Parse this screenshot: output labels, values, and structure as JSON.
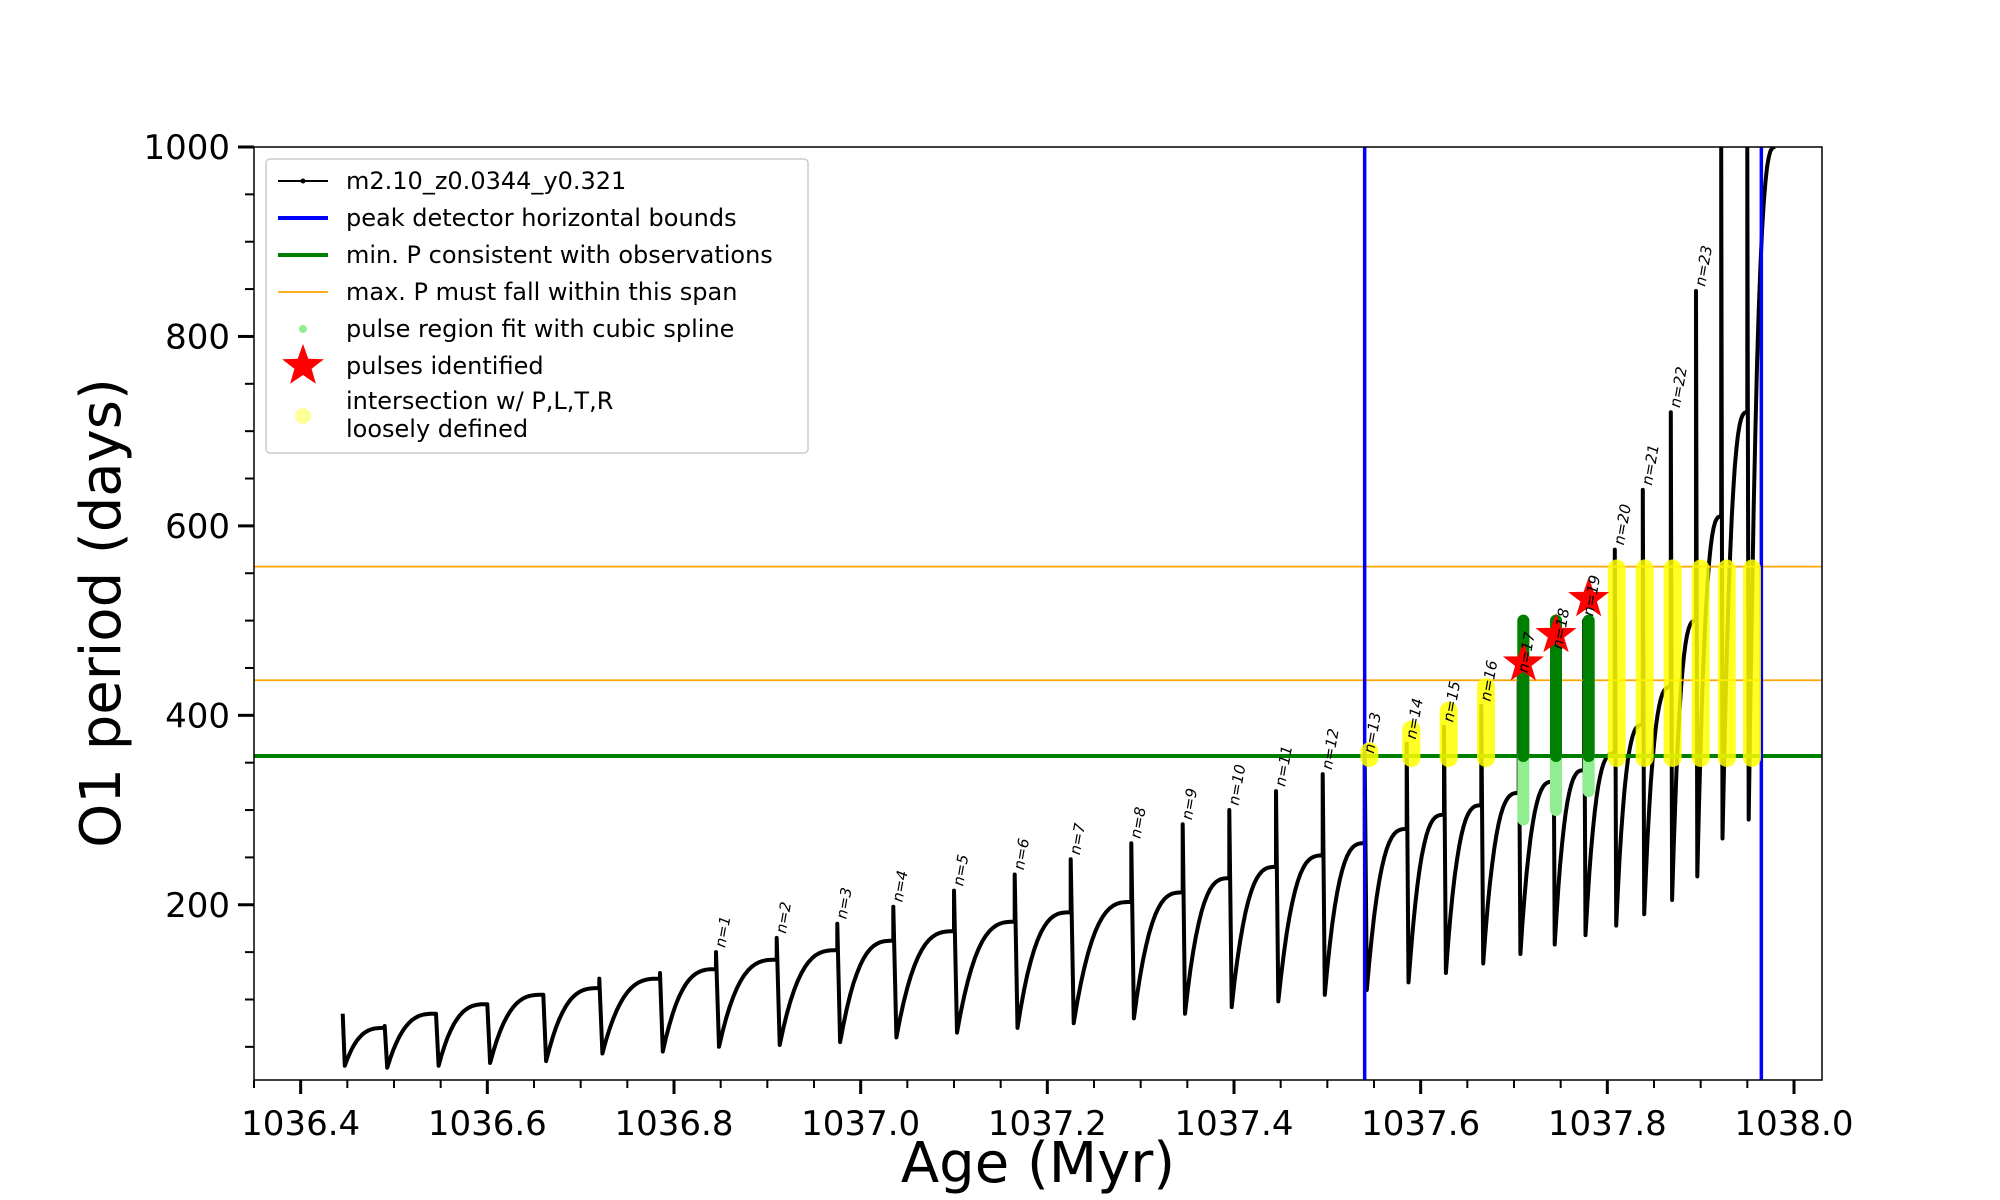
{
  "chart_data": {
    "type": "line",
    "xlabel": "Age (Myr)",
    "ylabel": "O1 period (days)",
    "xlim": [
      1036.35,
      1038.03
    ],
    "ylim": [
      15,
      1000
    ],
    "x_ticks": [
      1036.4,
      1036.6,
      1036.8,
      1037.0,
      1037.2,
      1037.4,
      1037.6,
      1037.8,
      1038.0
    ],
    "x_tick_labels": [
      "1036.4",
      "1036.6",
      "1036.8",
      "1037.0",
      "1037.2",
      "1037.4",
      "1037.6",
      "1037.8",
      "1038.0"
    ],
    "y_ticks": [
      200,
      400,
      600,
      800,
      1000
    ],
    "y_tick_labels": [
      "200",
      "400",
      "600",
      "800",
      "1000"
    ],
    "legend_position": "top-left",
    "legend": [
      {
        "label": "m2.10_z0.0344_y0.321",
        "color": "#000000",
        "kind": "line-marker"
      },
      {
        "label": "peak detector horizontal bounds",
        "color": "#0000ff",
        "kind": "line"
      },
      {
        "label": "min. P consistent with observations",
        "color": "#008000",
        "kind": "line"
      },
      {
        "label": "max. P must fall within this span",
        "color": "#ffa500",
        "kind": "thin-line"
      },
      {
        "label": "pulse region fit with cubic spline",
        "color": "#90ee90",
        "kind": "dot"
      },
      {
        "label": "pulses identified",
        "color": "#ff0000",
        "kind": "star"
      },
      {
        "label": "intersection w/ P,L,T,R",
        "label2": "loosely defined",
        "color": "#ffff99",
        "kind": "circle"
      }
    ],
    "vertical_lines": [
      {
        "x": 1037.54,
        "color": "#0000ff"
      },
      {
        "x": 1037.965,
        "color": "#0000ff"
      }
    ],
    "horizontal_lines": [
      {
        "y": 357,
        "color": "#008000"
      },
      {
        "y": 437,
        "color": "#ffa500"
      },
      {
        "y": 557,
        "color": "#ffa500"
      }
    ],
    "pulses": [
      {
        "n": "",
        "start": 1036.445,
        "end": 1036.49,
        "peak": 85,
        "trough": 30,
        "top": 70
      },
      {
        "n": "",
        "start": 1036.49,
        "end": 1036.545,
        "peak": 72,
        "trough": 28,
        "top": 85
      },
      {
        "n": "",
        "start": 1036.545,
        "end": 1036.6,
        "peak": 85,
        "trough": 30,
        "top": 95
      },
      {
        "n": "",
        "start": 1036.6,
        "end": 1036.66,
        "peak": 95,
        "trough": 33,
        "top": 105
      },
      {
        "n": "",
        "start": 1036.66,
        "end": 1036.72,
        "peak": 105,
        "trough": 35,
        "top": 112
      },
      {
        "n": "",
        "start": 1036.72,
        "end": 1036.785,
        "peak": 122,
        "trough": 43,
        "top": 122
      },
      {
        "n": "",
        "start": 1036.785,
        "end": 1036.845,
        "peak": 128,
        "trough": 45,
        "top": 132
      },
      {
        "n": "n=1",
        "start": 1036.845,
        "end": 1036.91,
        "peak": 150,
        "trough": 50,
        "top": 142
      },
      {
        "n": "n=2",
        "start": 1036.91,
        "end": 1036.975,
        "peak": 165,
        "trough": 52,
        "top": 152
      },
      {
        "n": "n=3",
        "start": 1036.975,
        "end": 1037.035,
        "peak": 180,
        "trough": 55,
        "top": 162
      },
      {
        "n": "n=4",
        "start": 1037.035,
        "end": 1037.1,
        "peak": 198,
        "trough": 60,
        "top": 172
      },
      {
        "n": "n=5",
        "start": 1037.1,
        "end": 1037.165,
        "peak": 215,
        "trough": 65,
        "top": 182
      },
      {
        "n": "n=6",
        "start": 1037.165,
        "end": 1037.225,
        "peak": 232,
        "trough": 70,
        "top": 192
      },
      {
        "n": "n=7",
        "start": 1037.225,
        "end": 1037.29,
        "peak": 248,
        "trough": 75,
        "top": 203
      },
      {
        "n": "n=8",
        "start": 1037.29,
        "end": 1037.345,
        "peak": 265,
        "trough": 80,
        "top": 213
      },
      {
        "n": "n=9",
        "start": 1037.345,
        "end": 1037.395,
        "peak": 285,
        "trough": 85,
        "top": 228
      },
      {
        "n": "n=10",
        "start": 1037.395,
        "end": 1037.445,
        "peak": 300,
        "trough": 92,
        "top": 240
      },
      {
        "n": "n=11",
        "start": 1037.445,
        "end": 1037.495,
        "peak": 320,
        "trough": 98,
        "top": 252
      },
      {
        "n": "n=12",
        "start": 1037.495,
        "end": 1037.54,
        "peak": 338,
        "trough": 105,
        "top": 265
      },
      {
        "n": "n=13",
        "start": 1037.54,
        "end": 1037.585,
        "peak": 355,
        "trough": 110,
        "top": 280
      },
      {
        "n": "n=14",
        "start": 1037.585,
        "end": 1037.625,
        "peak": 370,
        "trough": 118,
        "top": 295
      },
      {
        "n": "n=15",
        "start": 1037.625,
        "end": 1037.665,
        "peak": 388,
        "trough": 128,
        "top": 305
      },
      {
        "n": "n=16",
        "start": 1037.665,
        "end": 1037.705,
        "peak": 410,
        "trough": 138,
        "top": 318
      },
      {
        "n": "n=17",
        "start": 1037.705,
        "end": 1037.742,
        "peak": 440,
        "trough": 148,
        "top": 330
      },
      {
        "n": "n=18",
        "start": 1037.742,
        "end": 1037.775,
        "peak": 465,
        "trough": 158,
        "top": 342
      },
      {
        "n": "n=19",
        "start": 1037.775,
        "end": 1037.808,
        "peak": 500,
        "trough": 168,
        "top": 360
      },
      {
        "n": "n=20",
        "start": 1037.808,
        "end": 1037.838,
        "peak": 575,
        "trough": 178,
        "top": 390
      },
      {
        "n": "n=21",
        "start": 1037.838,
        "end": 1037.868,
        "peak": 638,
        "trough": 190,
        "top": 430
      },
      {
        "n": "n=22",
        "start": 1037.868,
        "end": 1037.895,
        "peak": 720,
        "trough": 205,
        "top": 500
      },
      {
        "n": "n=23",
        "start": 1037.895,
        "end": 1037.922,
        "peak": 848,
        "trough": 230,
        "top": 610
      },
      {
        "n": "",
        "start": 1037.922,
        "end": 1037.95,
        "peak": 1000,
        "trough": 270,
        "top": 720
      },
      {
        "n": "",
        "start": 1037.95,
        "end": 1037.98,
        "peak": 1000,
        "trough": 290,
        "top": 1000
      }
    ],
    "spline_regions": [
      {
        "x": 1037.71,
        "ymin": 290,
        "ymax": 500
      },
      {
        "x": 1037.745,
        "ymin": 300,
        "ymax": 500
      },
      {
        "x": 1037.78,
        "ymin": 320,
        "ymax": 500
      }
    ],
    "identified_pulses": [
      {
        "x": 1037.71,
        "y": 455
      },
      {
        "x": 1037.745,
        "y": 485
      },
      {
        "x": 1037.78,
        "y": 523
      }
    ],
    "intersection_regions": [
      {
        "x": 1037.545,
        "ymin": 355,
        "ymax": 362
      },
      {
        "x": 1037.59,
        "ymin": 355,
        "ymax": 385
      },
      {
        "x": 1037.63,
        "ymin": 355,
        "ymax": 405
      },
      {
        "x": 1037.67,
        "ymin": 355,
        "ymax": 430
      },
      {
        "x": 1037.81,
        "ymin": 355,
        "ymax": 555
      },
      {
        "x": 1037.84,
        "ymin": 355,
        "ymax": 555
      },
      {
        "x": 1037.87,
        "ymin": 355,
        "ymax": 555
      },
      {
        "x": 1037.9,
        "ymin": 355,
        "ymax": 555
      },
      {
        "x": 1037.928,
        "ymin": 355,
        "ymax": 555
      },
      {
        "x": 1037.955,
        "ymin": 355,
        "ymax": 555
      }
    ]
  }
}
